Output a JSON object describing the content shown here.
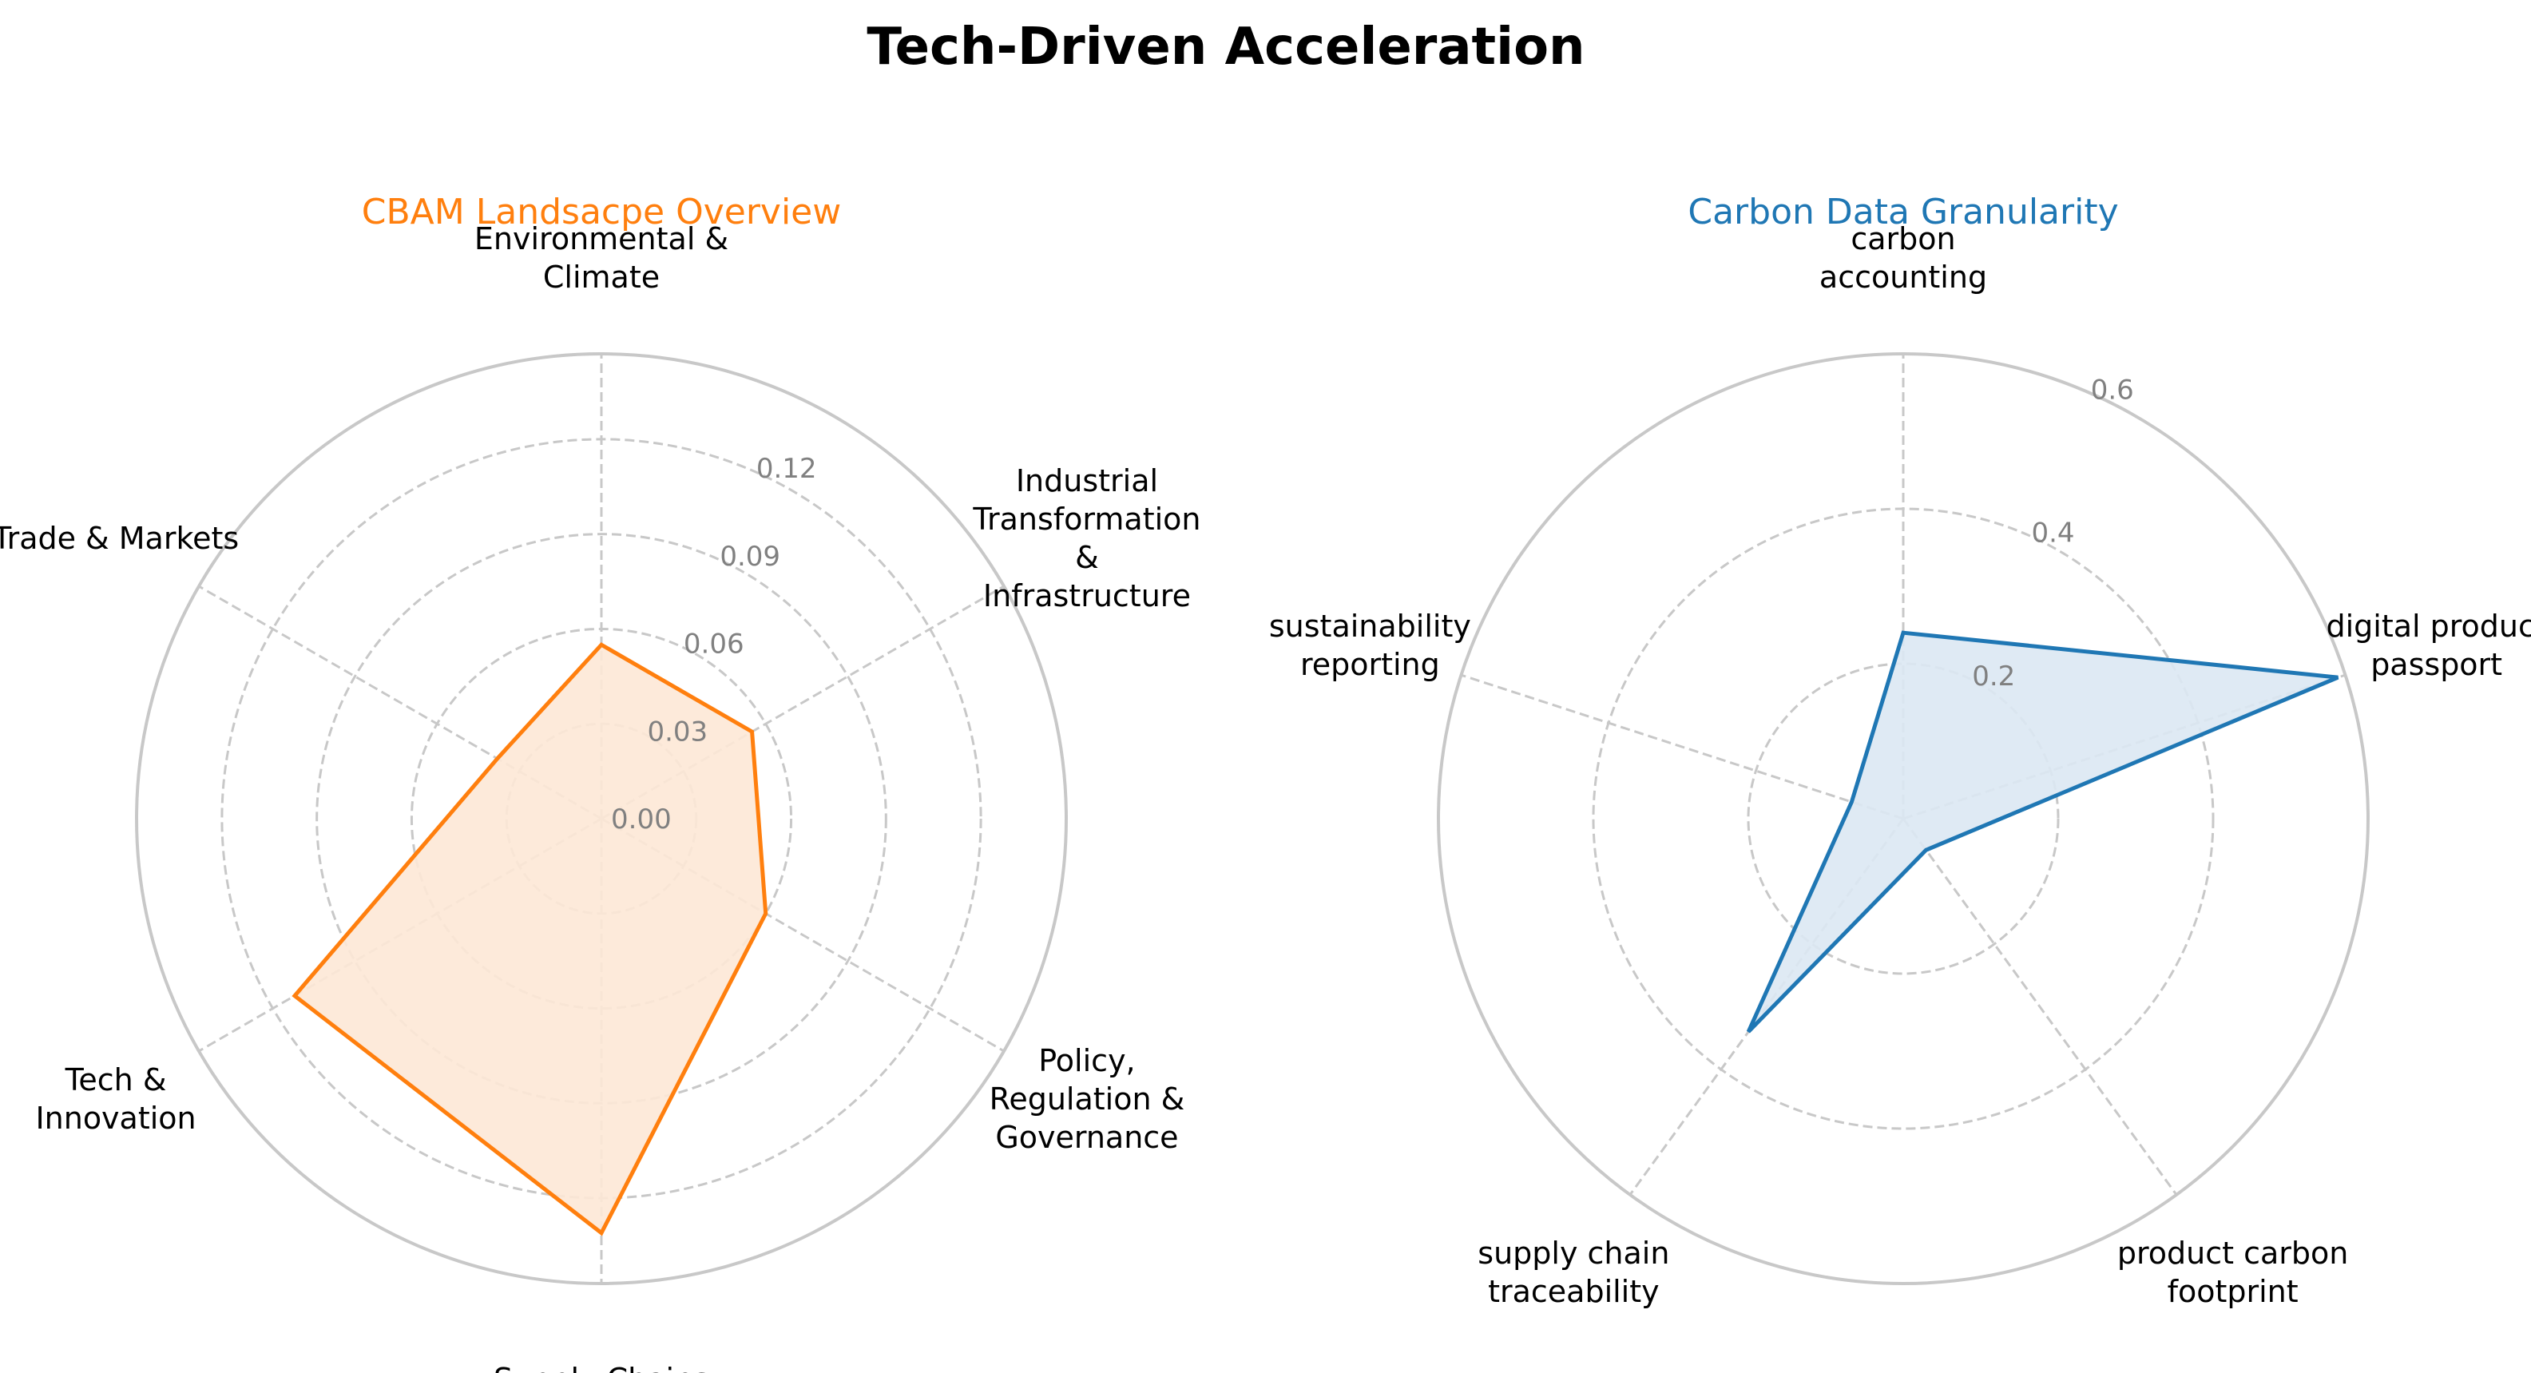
{
  "title": "Tech-Driven Acceleration",
  "chart_data": [
    {
      "type": "radar",
      "title": "CBAM Landsacpe Overview",
      "color": "#ff7f0e",
      "fill_color": "#fde8d6",
      "axes": [
        [
          "Environmental &",
          "Climate"
        ],
        [
          "Industrial",
          "Transformation",
          "&",
          "Infrastructure"
        ],
        [
          "Policy,",
          "Regulation &",
          "Governance"
        ],
        [
          "Supply Chains"
        ],
        [
          "Tech &",
          "Innovation"
        ],
        [
          "Trade & Markets"
        ]
      ],
      "values": [
        0.055,
        0.055,
        0.06,
        0.131,
        0.112,
        0.038
      ],
      "rlim": [
        0,
        0.147
      ],
      "rticks": [
        0.0,
        0.03,
        0.06,
        0.09,
        0.12
      ],
      "rtick_labels": [
        "0.00",
        "0.03",
        "0.06",
        "0.09",
        "0.12"
      ],
      "grid": true
    },
    {
      "type": "radar",
      "title": "Carbon Data Granularity",
      "color": "#1f77b4",
      "fill_color": "#dce8f3",
      "axes": [
        [
          "carbon",
          "accounting"
        ],
        [
          "digital product",
          "passport"
        ],
        [
          "product carbon",
          "footprint"
        ],
        [
          "supply chain",
          "traceability"
        ],
        [
          "sustainability",
          "reporting"
        ]
      ],
      "values": [
        0.24,
        0.59,
        0.05,
        0.34,
        0.07
      ],
      "rlim": [
        0,
        0.6
      ],
      "rticks": [
        0.2,
        0.4,
        0.6
      ],
      "rtick_labels": [
        "0.2",
        "0.4",
        "0.6"
      ],
      "grid": true
    }
  ]
}
